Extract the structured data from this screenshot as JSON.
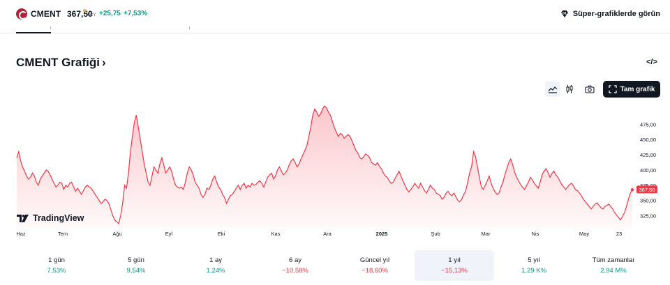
{
  "header": {
    "symbol": "CMENT",
    "price": "367,50",
    "currency": "TRY",
    "change": "+25,75",
    "change_pct": "+7,53%",
    "super_charts": "Süper-grafiklerde görün"
  },
  "page": {
    "title": "CMENT Grafiği",
    "title_chevron": "›",
    "embed": "</>",
    "full_chart": "Tam grafik",
    "brand": "TradingView"
  },
  "colors": {
    "accent_up": "#089981",
    "accent_down": "#f23645",
    "line": "#f23645",
    "brand_dark": "#131722"
  },
  "icons": [
    "area-chart-icon",
    "candles-icon",
    "camera-icon",
    "fullscreen-icon",
    "diamond-icon",
    "tradingview-logo"
  ],
  "chart_data": {
    "type": "area",
    "x_labels": [
      "Haz",
      "Tem",
      "Ağu",
      "Eyl",
      "Eki",
      "Kas",
      "Ara",
      "2025",
      "Şub",
      "Mar",
      "Nis",
      "May",
      "23"
    ],
    "y_ticks": [
      "475,00",
      "450,00",
      "425,00",
      "400,00",
      "375,00",
      "350,00",
      "325,00"
    ],
    "ylim": [
      305,
      505
    ],
    "last_value_label": "367,50",
    "grid": false,
    "values": [
      420,
      430,
      415,
      405,
      398,
      390,
      385,
      388,
      395,
      390,
      380,
      375,
      385,
      390,
      395,
      400,
      398,
      392,
      385,
      378,
      372,
      375,
      380,
      378,
      368,
      375,
      372,
      378,
      380,
      372,
      365,
      370,
      365,
      360,
      366,
      372,
      375,
      372,
      370,
      365,
      360,
      355,
      350,
      345,
      348,
      352,
      350,
      345,
      335,
      325,
      318,
      315,
      312,
      325,
      345,
      375,
      370,
      395,
      430,
      455,
      478,
      490,
      470,
      450,
      430,
      410,
      395,
      380,
      375,
      390,
      405,
      400,
      395,
      410,
      420,
      408,
      395,
      400,
      405,
      398,
      385,
      375,
      372,
      370,
      372,
      368,
      380,
      395,
      405,
      400,
      392,
      380,
      375,
      370,
      360,
      355,
      360,
      370,
      368,
      375,
      385,
      390,
      380,
      372,
      368,
      360,
      355,
      345,
      352,
      358,
      360,
      365,
      370,
      375,
      368,
      375,
      378,
      370,
      375,
      372,
      378,
      375,
      376,
      380,
      382,
      378,
      372,
      380,
      388,
      392,
      395,
      385,
      390,
      400,
      405,
      398,
      392,
      395,
      400,
      408,
      415,
      418,
      412,
      405,
      410,
      418,
      425,
      432,
      440,
      455,
      470,
      490,
      500,
      495,
      488,
      492,
      500,
      505,
      502,
      495,
      490,
      480,
      470,
      462,
      455,
      460,
      458,
      452,
      455,
      458,
      455,
      448,
      440,
      432,
      428,
      420,
      418,
      422,
      426,
      424,
      420,
      412,
      410,
      408,
      412,
      406,
      402,
      395,
      390,
      388,
      382,
      378,
      380,
      386,
      392,
      398,
      390,
      382,
      375,
      368,
      364,
      368,
      372,
      378,
      374,
      370,
      378,
      372,
      366,
      362,
      368,
      375,
      370,
      368,
      362,
      360,
      358,
      352,
      355,
      362,
      365,
      360,
      358,
      362,
      356,
      350,
      348,
      352,
      360,
      365,
      380,
      395,
      405,
      430,
      422,
      405,
      388,
      372,
      368,
      375,
      382,
      390,
      378,
      370,
      364,
      360,
      362,
      372,
      380,
      392,
      402,
      412,
      418,
      408,
      396,
      388,
      382,
      376,
      372,
      368,
      374,
      380,
      388,
      384,
      378,
      374,
      370,
      380,
      392,
      398,
      402,
      396,
      388,
      394,
      398,
      392,
      388,
      382,
      376,
      372,
      368,
      372,
      376,
      378,
      374,
      368,
      366,
      362,
      358,
      352,
      348,
      344,
      340,
      336,
      340,
      344,
      346,
      342,
      338,
      336,
      340,
      342,
      344,
      340,
      336,
      330,
      326,
      322,
      318,
      324,
      330,
      340,
      352,
      362,
      367.5
    ]
  },
  "periods": [
    {
      "label": "1 gün",
      "value": "7,53%",
      "dir": "pos"
    },
    {
      "label": "5 gün",
      "value": "9,54%",
      "dir": "pos"
    },
    {
      "label": "1 ay",
      "value": "1,24%",
      "dir": "pos"
    },
    {
      "label": "6 ay",
      "value": "−10,58%",
      "dir": "neg"
    },
    {
      "label": "Güncel yıl",
      "value": "−18,60%",
      "dir": "neg"
    },
    {
      "label": "1 yıl",
      "value": "−15,13%",
      "dir": "neg",
      "active": true
    },
    {
      "label": "5 yıl",
      "value": "1,29 K%",
      "dir": "pos"
    },
    {
      "label": "Tüm zamanlar",
      "value": "2,94 M%",
      "dir": "pos"
    }
  ]
}
